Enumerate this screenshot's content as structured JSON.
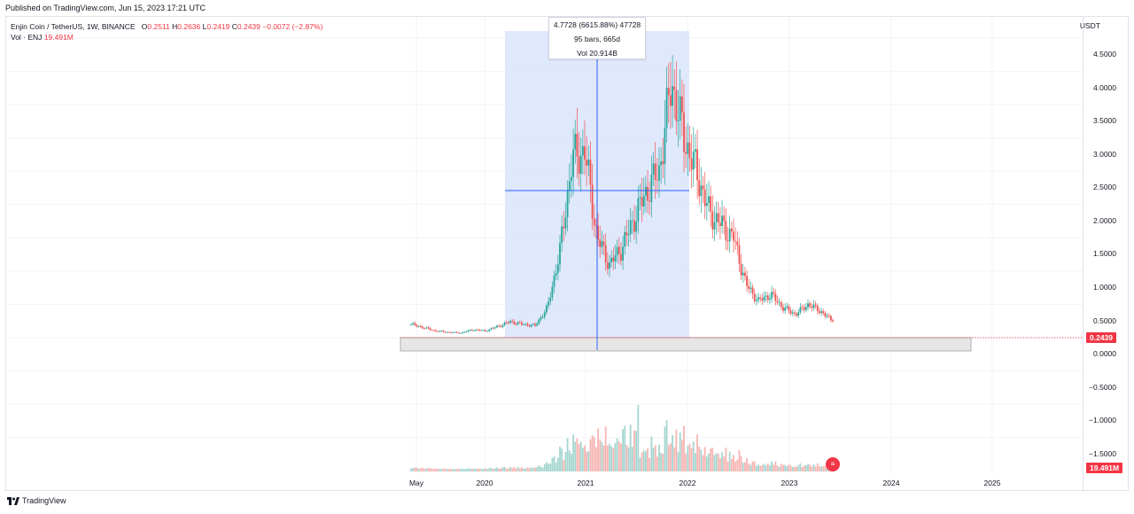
{
  "header": {
    "published": "Published on TradingView.com, Jun 15, 2023 17:21 UTC"
  },
  "legend": {
    "symbol": "Enjin Coin / TetherUS, 1W, BINANCE",
    "o_label": "O",
    "o_val": "0.2511",
    "h_label": "H",
    "h_val": "0.2636",
    "l_label": "L",
    "l_val": "0.2419",
    "c_label": "C",
    "c_val": "0.2439",
    "change": "−0.0072 (−2.87%)",
    "vol_label": "Vol · ENJ",
    "vol_val": "19.491M"
  },
  "currency": "USDT",
  "price_ticks": [
    "4.5000",
    "4.0000",
    "3.5000",
    "3.0000",
    "2.5000",
    "2.0000",
    "1.5000",
    "1.0000",
    "0.5000",
    "0.0000",
    "−0.5000",
    "−1.0000",
    "−1.5000"
  ],
  "time_ticks": [
    "May",
    "2020",
    "2021",
    "2022",
    "2023",
    "2024",
    "2025"
  ],
  "last_price": "0.2439",
  "last_volume": "19.491M",
  "measure": {
    "line1": "4.7728 (6615.88%) 47728",
    "line2": "95 bars, 665d",
    "line3": "Vol 20.914B"
  },
  "brand": "TradingView",
  "colors": {
    "up": "#26a69a",
    "down": "#ef5350",
    "measure_fill": "#dbe4fb",
    "measure_line": "#2962ff"
  },
  "chart_data": {
    "type": "candlestick",
    "x": [
      "2019-04",
      "2019-06",
      "2019-08",
      "2019-10",
      "2019-12",
      "2020-02",
      "2020-04",
      "2020-06",
      "2020-08",
      "2020-10",
      "2020-12",
      "2021-01",
      "2021-02",
      "2021-03",
      "2021-04",
      "2021-05",
      "2021-06",
      "2021-07",
      "2021-08",
      "2021-09",
      "2021-10",
      "2021-11",
      "2021-12",
      "2022-01",
      "2022-02",
      "2022-03",
      "2022-04",
      "2022-05",
      "2022-06",
      "2022-08",
      "2022-10",
      "2022-12",
      "2023-02",
      "2023-04",
      "2023-06"
    ],
    "close": [
      0.2,
      0.15,
      0.1,
      0.08,
      0.07,
      0.12,
      0.1,
      0.17,
      0.24,
      0.2,
      0.18,
      0.45,
      1.3,
      2.7,
      2.8,
      1.5,
      1.1,
      1.35,
      1.8,
      2.2,
      2.5,
      3.85,
      3.0,
      2.5,
      1.9,
      1.7,
      1.5,
      0.8,
      0.55,
      0.65,
      0.45,
      0.35,
      0.5,
      0.4,
      0.24
    ],
    "ylim": [
      -1.8,
      4.9
    ]
  }
}
